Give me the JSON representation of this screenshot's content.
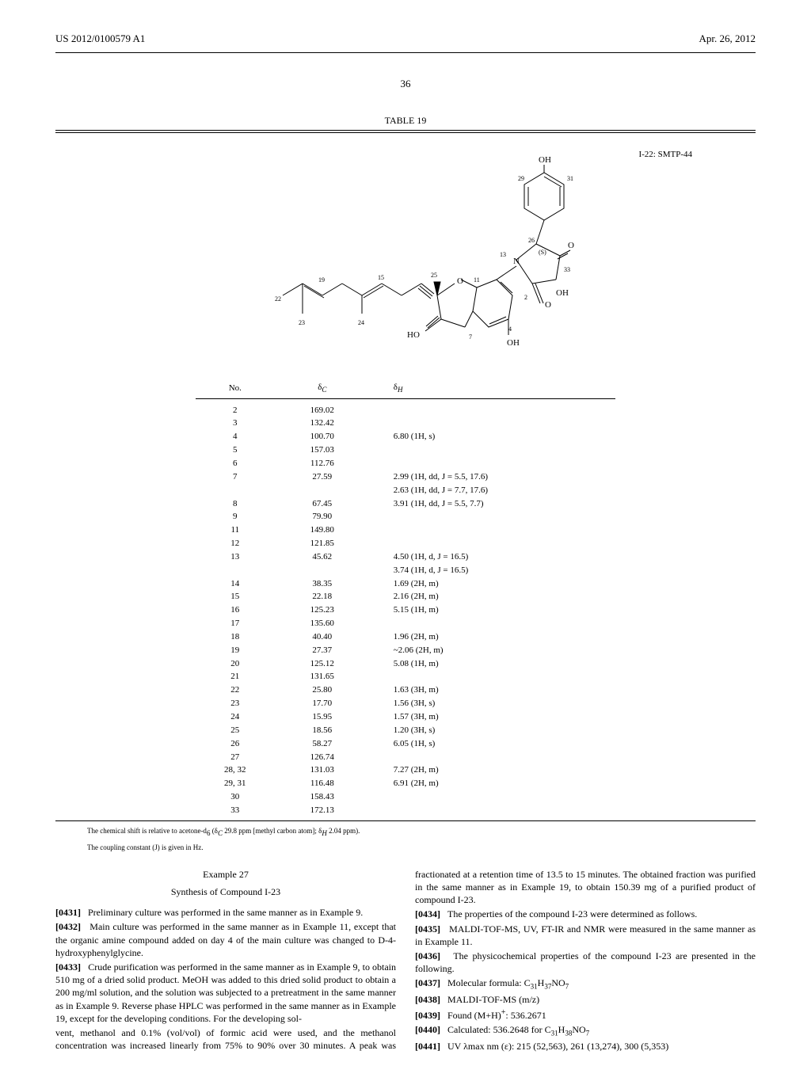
{
  "header": {
    "pub_number": "US 2012/0100579 A1",
    "date": "Apr. 26, 2012",
    "page": "36"
  },
  "table": {
    "title": "TABLE 19",
    "compound_label": "I-22: SMTP-44",
    "columns": [
      "No.",
      "δC",
      "δH"
    ],
    "rows": [
      {
        "no": "2",
        "c": "169.02",
        "h": ""
      },
      {
        "no": "3",
        "c": "132.42",
        "h": ""
      },
      {
        "no": "4",
        "c": "100.70",
        "h": "6.80 (1H, s)"
      },
      {
        "no": "5",
        "c": "157.03",
        "h": ""
      },
      {
        "no": "6",
        "c": "112.76",
        "h": ""
      },
      {
        "no": "7",
        "c": "27.59",
        "h": "2.99 (1H, dd, J = 5.5, 17.6)"
      },
      {
        "no": "",
        "c": "",
        "h": "2.63 (1H, dd, J = 7.7, 17.6)"
      },
      {
        "no": "8",
        "c": "67.45",
        "h": "3.91 (1H, dd, J = 5.5, 7.7)"
      },
      {
        "no": "9",
        "c": "79.90",
        "h": ""
      },
      {
        "no": "11",
        "c": "149.80",
        "h": ""
      },
      {
        "no": "12",
        "c": "121.85",
        "h": ""
      },
      {
        "no": "13",
        "c": "45.62",
        "h": "4.50 (1H, d, J = 16.5)"
      },
      {
        "no": "",
        "c": "",
        "h": "3.74 (1H, d, J = 16.5)"
      },
      {
        "no": "14",
        "c": "38.35",
        "h": "1.69 (2H, m)"
      },
      {
        "no": "15",
        "c": "22.18",
        "h": "2.16 (2H, m)"
      },
      {
        "no": "16",
        "c": "125.23",
        "h": "5.15 (1H, m)"
      },
      {
        "no": "17",
        "c": "135.60",
        "h": ""
      },
      {
        "no": "18",
        "c": "40.40",
        "h": "1.96 (2H, m)"
      },
      {
        "no": "19",
        "c": "27.37",
        "h": "~2.06 (2H, m)"
      },
      {
        "no": "20",
        "c": "125.12",
        "h": "5.08 (1H, m)"
      },
      {
        "no": "21",
        "c": "131.65",
        "h": ""
      },
      {
        "no": "22",
        "c": "25.80",
        "h": "1.63 (3H, m)"
      },
      {
        "no": "23",
        "c": "17.70",
        "h": "1.56 (3H, s)"
      },
      {
        "no": "24",
        "c": "15.95",
        "h": "1.57 (3H, m)"
      },
      {
        "no": "25",
        "c": "18.56",
        "h": "1.20 (3H, s)"
      },
      {
        "no": "26",
        "c": "58.27",
        "h": "6.05 (1H, s)"
      },
      {
        "no": "27",
        "c": "126.74",
        "h": ""
      },
      {
        "no": "28, 32",
        "c": "131.03",
        "h": "7.27 (2H, m)"
      },
      {
        "no": "29, 31",
        "c": "116.48",
        "h": "6.91 (2H, m)"
      },
      {
        "no": "30",
        "c": "158.43",
        "h": ""
      },
      {
        "no": "33",
        "c": "172.13",
        "h": ""
      }
    ],
    "footnote1": "The chemical shift is relative to acetone-d6 (δC 29.8 ppm [methyl carbon atom]; δH 2.04 ppm).",
    "footnote2": "The coupling constant (J) is given in Hz."
  },
  "example": {
    "number": "Example 27",
    "title": "Synthesis of Compound I-23"
  },
  "paragraphs": {
    "p0431": "Preliminary culture was performed in the same manner as in Example 9.",
    "p0432": "Main culture was performed in the same manner as in Example 11, except that the organic amine compound added on day 4 of the main culture was changed to D-4-hydroxyphenylglycine.",
    "p0433": "Crude purification was performed in the same manner as in Example 9, to obtain 510 mg of a dried solid product. MeOH was added to this dried solid product to obtain a 200 mg/ml solution, and the solution was subjected to a pretreatment in the same manner as in Example 9. Reverse phase HPLC was performed in the same manner as in Example 19, except for the developing conditions. For the developing sol",
    "p_cont": "vent, methanol and 0.1% (vol/vol) of formic acid were used, and the methanol concentration was increased linearly from 75% to 90% over 30 minutes. A peak was fractionated at a retention time of 13.5 to 15 minutes. The obtained fraction was purified in the same manner as in Example 19, to obtain 150.39 mg of a purified product of compound I-23.",
    "p0434": "The properties of the compound I-23 were determined as follows.",
    "p0435": "MALDI-TOF-MS, UV, FT-IR and NMR were measured in the same manner as in Example 11.",
    "p0436": "The physicochemical properties of the compound I-23 are presented in the following.",
    "p0437": "Molecular formula: C31H37NO7",
    "p0438": "MALDI-TOF-MS (m/z)",
    "p0439": "Found (M+H)+: 536.2671",
    "p0440": "Calculated: 536.2648 for C31H38NO7",
    "p0441": "UV λmax nm (ε): 215 (52,563), 261 (13,274), 300 (5,353)"
  },
  "nums": {
    "n0431": "[0431]",
    "n0432": "[0432]",
    "n0433": "[0433]",
    "n0434": "[0434]",
    "n0435": "[0435]",
    "n0436": "[0436]",
    "n0437": "[0437]",
    "n0438": "[0438]",
    "n0439": "[0439]",
    "n0440": "[0440]",
    "n0441": "[0441]"
  },
  "structure": {
    "labels": [
      "22",
      "23",
      "19",
      "24",
      "15",
      "25",
      "11",
      "13",
      "26",
      "(S)",
      "29",
      "31",
      "33",
      "2",
      "4",
      "7",
      "OH",
      "OH",
      "OH",
      "O",
      "O",
      "O",
      "OH",
      "HO",
      "N"
    ],
    "atom_font": 11,
    "line_color": "#000000"
  }
}
